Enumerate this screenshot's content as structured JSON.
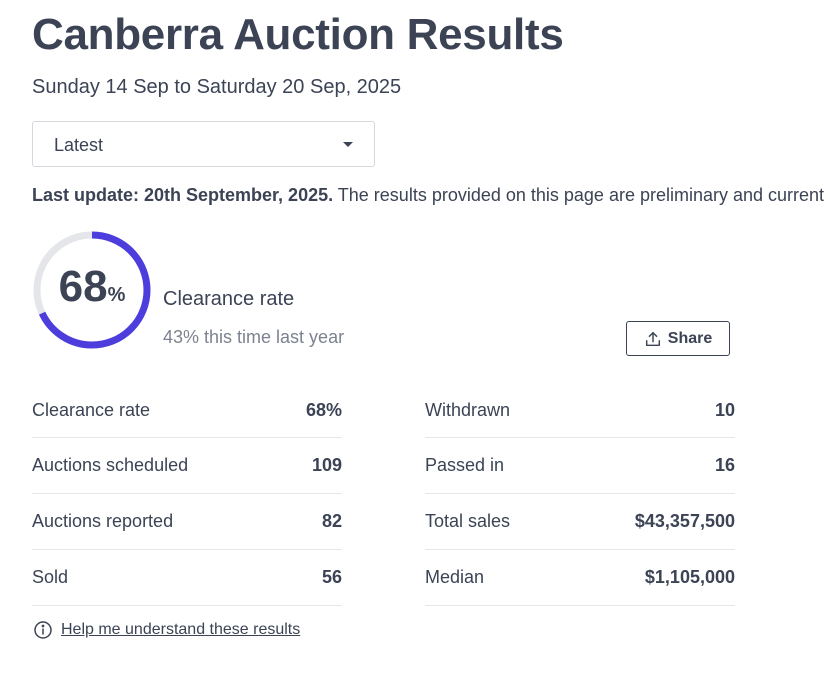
{
  "page": {
    "title": "Canberra Auction Results",
    "date_range": "Sunday 14 Sep to Saturday 20 Sep, 2025"
  },
  "period_select": {
    "value": "Latest"
  },
  "notice": {
    "bold": "Last update: 20th September, 2025.",
    "text": " The results provided on this page are preliminary and current"
  },
  "summary": {
    "rate_value": "68",
    "rate_unit": "%",
    "rate_fraction": 0.68,
    "heading": "Clearance rate",
    "last_year": "43% this time last year",
    "progress_color": "#4c3ddc",
    "track_color": "#e4e6ea"
  },
  "share": {
    "label": "Share",
    "icon": "share-upload-icon"
  },
  "stats_left": [
    {
      "label": "Clearance rate",
      "value": "68%"
    },
    {
      "label": "Auctions scheduled",
      "value": "109"
    },
    {
      "label": "Auctions reported",
      "value": "82"
    },
    {
      "label": "Sold",
      "value": "56"
    }
  ],
  "stats_right": [
    {
      "label": "Withdrawn",
      "value": "10"
    },
    {
      "label": "Passed in",
      "value": "16"
    },
    {
      "label": "Total sales",
      "value": "$43,357,500"
    },
    {
      "label": "Median",
      "value": "$1,105,000"
    }
  ],
  "help": {
    "label": "Help me understand these results",
    "icon": "info-icon"
  }
}
